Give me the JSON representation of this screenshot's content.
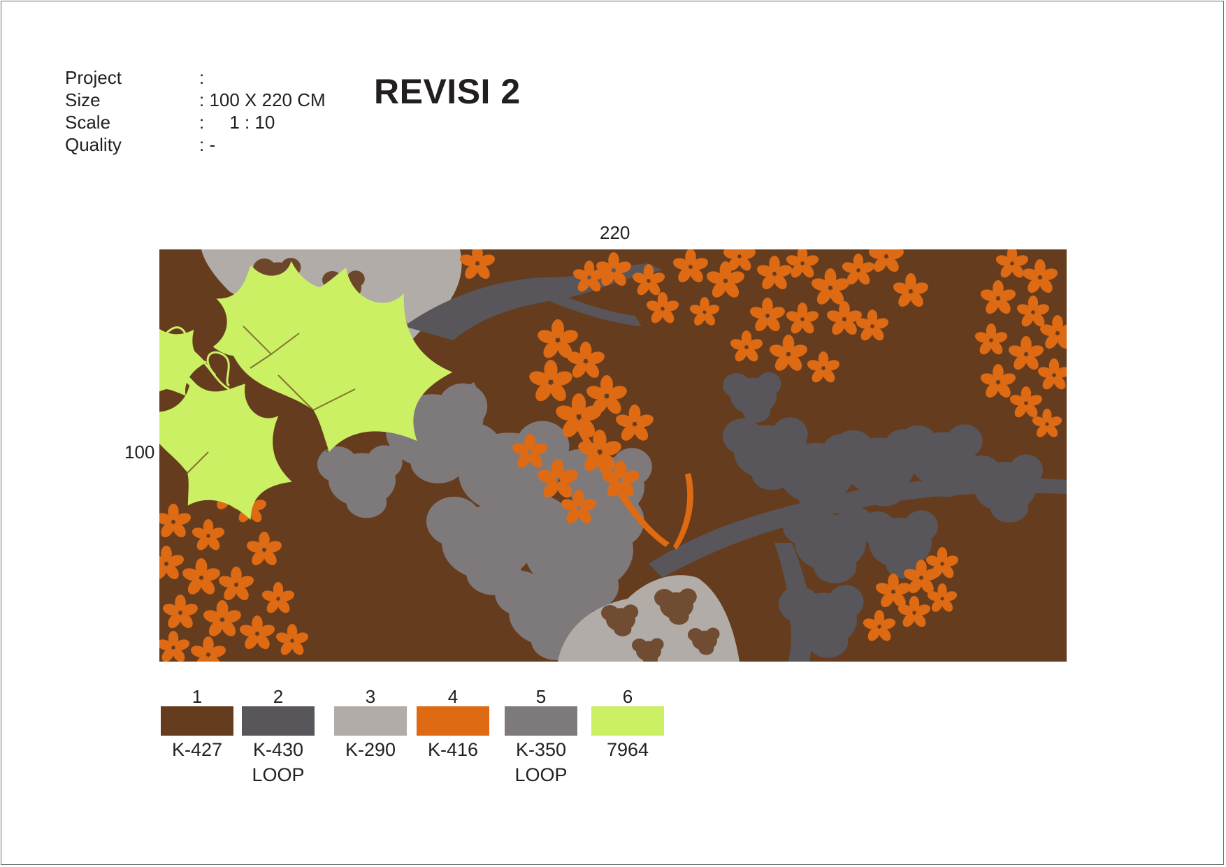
{
  "spec": {
    "rows": [
      {
        "label": "Project",
        "value": ":"
      },
      {
        "label": "Size",
        "value": ": 100 X 220 CM"
      },
      {
        "label": "Scale",
        "value": ":     1 : 10"
      },
      {
        "label": "Quality",
        "value": ": -"
      }
    ]
  },
  "title": "REVISI 2",
  "dimensions": {
    "width_label": "220",
    "height_label": "100"
  },
  "colors": {
    "background": "#653d1e",
    "dark_gray": "#58565a",
    "light_gray": "#b1aca8",
    "orange": "#de6a14",
    "mid_gray": "#7e7a7b",
    "lime": "#ccf064"
  },
  "palette": [
    {
      "number": "1",
      "code": "K-427",
      "note": "",
      "color": "#653d1e"
    },
    {
      "number": "2",
      "code": "K-430",
      "note": "LOOP",
      "color": "#58565a"
    },
    {
      "number": "3",
      "code": "K-290",
      "note": "",
      "color": "#b1aca8"
    },
    {
      "number": "4",
      "code": "K-416",
      "note": "",
      "color": "#de6a14"
    },
    {
      "number": "5",
      "code": "K-350",
      "note": "LOOP",
      "color": "#7e7a7b"
    },
    {
      "number": "6",
      "code": "7964",
      "note": "",
      "color": "#ccf064"
    }
  ]
}
